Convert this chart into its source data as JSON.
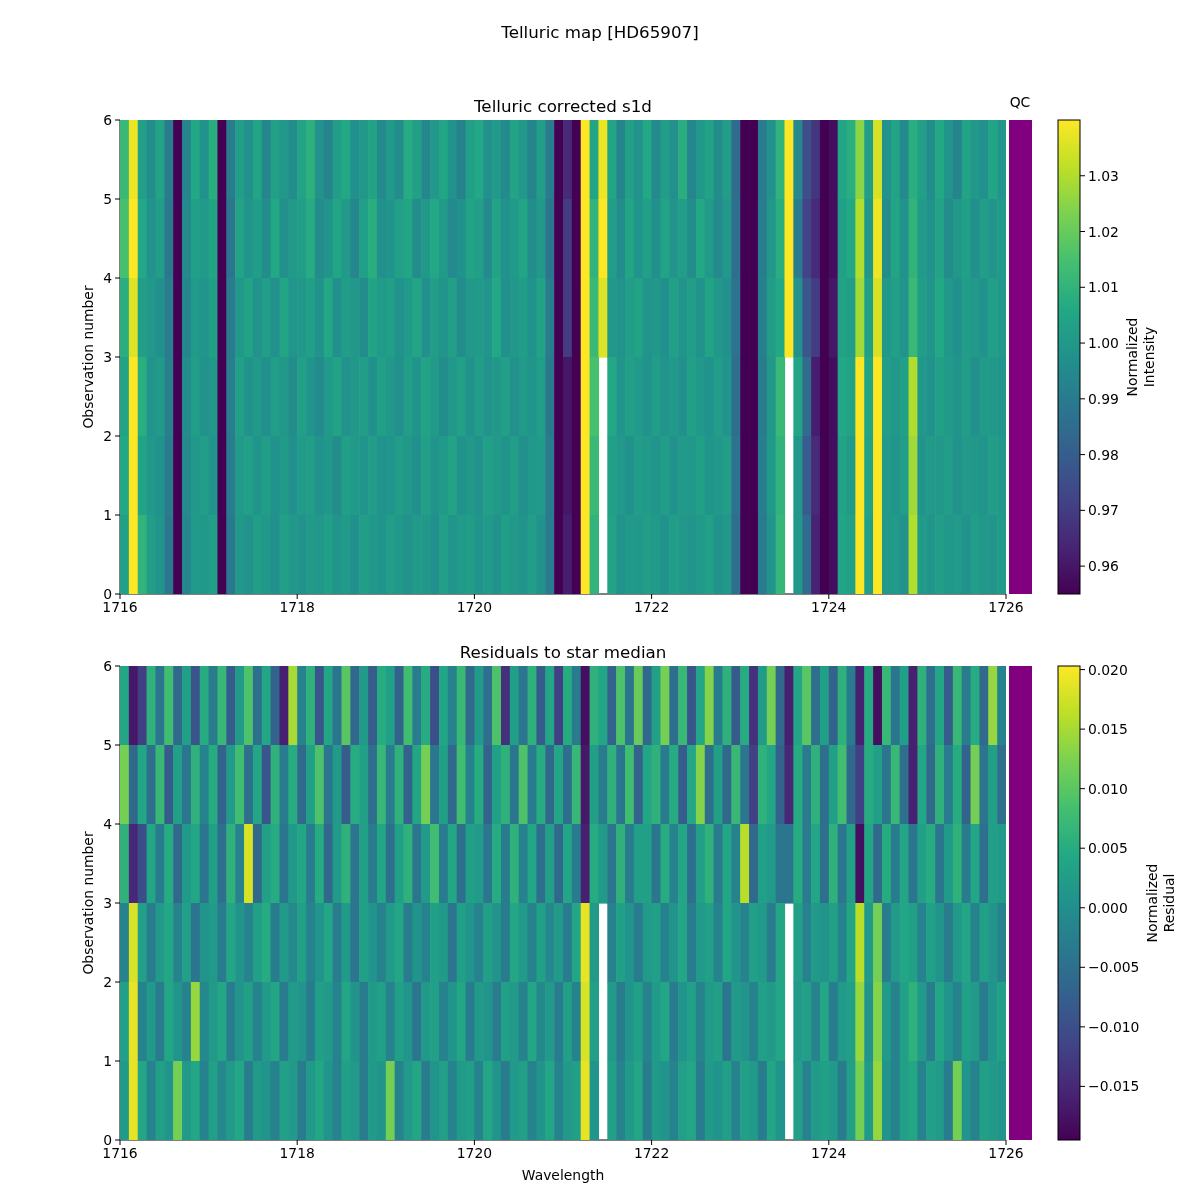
{
  "chart_data": [
    {
      "type": "heatmap",
      "title": "Telluric corrected s1d",
      "ylabel": "Observation number",
      "clabel": "Normalized Intensity",
      "annotations": [
        "Telluric map [HD65907]",
        "QC"
      ],
      "x": [
        1716.05,
        1716.15,
        1716.25,
        1716.35,
        1716.45,
        1716.55,
        1716.65,
        1716.75,
        1716.85,
        1716.95,
        1717.05,
        1717.15,
        1717.25,
        1717.35,
        1717.45,
        1717.55,
        1717.65,
        1717.75,
        1717.85,
        1717.95,
        1718.05,
        1718.15,
        1718.25,
        1718.35,
        1718.45,
        1718.55,
        1718.65,
        1718.75,
        1718.85,
        1718.95,
        1719.05,
        1719.15,
        1719.25,
        1719.35,
        1719.45,
        1719.55,
        1719.65,
        1719.75,
        1719.85,
        1719.95,
        1720.05,
        1720.15,
        1720.25,
        1720.35,
        1720.45,
        1720.55,
        1720.65,
        1720.75,
        1720.85,
        1720.95,
        1721.05,
        1721.15,
        1721.25,
        1721.35,
        1721.45,
        1721.55,
        1721.65,
        1721.75,
        1721.85,
        1721.95,
        1722.05,
        1722.15,
        1722.25,
        1722.35,
        1722.45,
        1722.55,
        1722.65,
        1722.75,
        1722.85,
        1722.95,
        1723.05,
        1723.15,
        1723.25,
        1723.35,
        1723.45,
        1723.55,
        1723.65,
        1723.75,
        1723.85,
        1723.95,
        1724.05,
        1724.15,
        1724.25,
        1724.35,
        1724.45,
        1724.55,
        1724.65,
        1724.75,
        1724.85,
        1724.95,
        1725.05,
        1725.15,
        1725.25,
        1725.35,
        1725.45,
        1725.55,
        1725.65,
        1725.75,
        1725.85,
        1725.95
      ],
      "xlim": [
        1716,
        1726
      ],
      "xticks": [
        1716,
        1718,
        1720,
        1722,
        1724,
        1726
      ],
      "ylim": [
        0,
        6
      ],
      "yticks": [
        0,
        1,
        2,
        3,
        4,
        5,
        6
      ],
      "clim": [
        0.955,
        1.04
      ],
      "cticks": [
        0.96,
        0.97,
        0.98,
        0.99,
        {
          "value": 1,
          "label": "1.00"
        },
        1.01,
        1.02,
        1.03
      ],
      "cells": [
        [
          1.012,
          1.038,
          1.003,
          0.996,
          1.004,
          0.99,
          0.955,
          0.993,
          1.006,
          0.998,
          1.008,
          0.955,
          0.99,
          1.002,
          0.997,
          1.005,
          0.994,
          1.003,
          1.0,
          0.996,
          1.004,
          1.009,
          0.998,
          0.993,
          1.002,
          1.006,
          0.997,
          1.0,
          1.004,
          0.995,
          1.001,
          0.996,
          1.007,
          1.003,
          0.994,
          1.0,
          1.005,
          0.998,
          0.992,
          1.003,
          1.006,
          0.997,
          1.001,
          0.995,
          1.004,
          1.0,
          0.993,
          1.002,
          0.99,
          0.955,
          0.965,
          0.955,
          1.04,
          1.005,
          1.038,
          1.005,
          0.993,
          1.003,
          0.998,
          1.006,
          0.995,
          1.002,
          0.997,
          1.008,
          0.994,
          1.0,
          1.004,
          0.996,
          1.002,
          0.985,
          0.955,
          0.955,
          0.99,
          0.998,
          1.01,
          1.04,
          0.995,
          0.975,
          0.968,
          0.955,
          0.958,
          1.005,
          1.008,
          1.025,
          1.002,
          1.035,
          0.998,
          1.004,
          0.995,
          1.008,
          1.003,
          0.996,
          1.006,
          0.999,
          0.993,
          1.004,
          1.0,
          0.997,
          1.005,
          0.999
        ],
        [
          1.015,
          1.04,
          1.006,
          0.998,
          1.002,
          0.989,
          0.955,
          0.995,
          1.003,
          1.001,
          1.005,
          0.955,
          0.988,
          1.004,
          0.999,
          1.002,
          0.996,
          1.006,
          0.997,
          1.001,
          1.002,
          1.007,
          0.996,
          0.999,
          1.005,
          1.001,
          0.994,
          1.003,
          1.008,
          0.997,
          0.999,
          1.003,
          1.005,
          0.996,
          1.0,
          1.006,
          1.001,
          0.995,
          0.998,
          1.004,
          1.003,
          0.995,
          1.004,
          0.998,
          1.001,
          1.005,
          0.996,
          1.0,
          0.988,
          0.955,
          0.97,
          0.955,
          1.04,
          1.01,
          1.04,
          1.002,
          0.996,
          1.005,
          0.999,
          1.003,
          0.997,
          1.004,
          0.999,
          1.002,
          0.996,
          1.006,
          1.001,
          0.995,
          1.0,
          0.986,
          0.955,
          0.955,
          0.991,
          1.0,
          1.008,
          1.04,
          0.99,
          0.972,
          0.965,
          0.955,
          0.958,
          1.003,
          1.006,
          1.03,
          1.0,
          1.038,
          0.996,
          1.005,
          0.998,
          1.01,
          1.001,
          0.998,
          1.004,
          0.996,
          1.0,
          1.003,
          0.997,
          1.002,
          0.999,
          1.001
        ],
        [
          1.008,
          1.036,
          1.002,
          1.0,
          0.997,
          0.991,
          0.955,
          0.994,
          1.001,
          0.999,
          1.003,
          0.955,
          0.99,
          1.0,
          1.004,
          0.998,
          1.002,
          0.997,
          1.005,
          0.999,
          1.0,
          1.003,
          0.998,
          1.006,
          0.997,
          1.002,
          1.0,
          0.996,
          1.004,
          1.001,
          1.003,
          0.998,
          1.001,
          1.005,
          0.997,
          1.002,
          0.999,
          1.003,
          0.996,
          1.0,
          1.001,
          0.999,
          1.006,
          0.997,
          1.0,
          1.002,
          0.998,
          1.004,
          0.99,
          0.955,
          0.97,
          0.955,
          1.04,
          1.012,
          1.036,
          1.0,
          0.998,
          1.002,
          1.004,
          0.999,
          1.0,
          0.997,
          1.003,
          0.999,
          1.002,
          0.998,
          1.004,
          1.0,
          0.997,
          0.987,
          0.955,
          0.955,
          0.992,
          1.002,
          1.006,
          1.04,
          0.998,
          0.978,
          0.97,
          0.955,
          0.96,
          1.004,
          1.002,
          1.028,
          1.003,
          1.035,
          1.0,
          1.003,
          0.999,
          1.012,
          1.002,
          0.999,
          1.006,
          1.0,
          0.997,
          1.002,
          1.001,
          0.998,
          1.003,
          1.0
        ],
        [
          1.004,
          1.04,
          1.008,
          0.999,
          1.001,
          0.992,
          0.955,
          0.996,
          1.002,
          0.998,
          1.0,
          0.955,
          0.991,
          1.003,
          0.998,
          1.001,
          0.997,
          1.002,
          1.0,
          0.996,
          1.003,
          0.999,
          0.995,
          1.001,
          1.004,
          0.998,
          1.0,
          1.002,
          0.997,
          1.003,
          1.0,
          0.997,
          1.002,
          0.999,
          1.004,
          1.001,
          0.996,
          1.0,
          1.003,
          0.998,
          1.002,
          0.998,
          1.0,
          1.003,
          0.997,
          1.001,
          0.999,
          1.002,
          0.989,
          0.955,
          0.96,
          0.955,
          1.04,
          1.015,
          null,
          1.006,
          0.999,
          1.003,
          1.001,
          0.998,
          1.002,
          0.999,
          1.001,
          0.997,
          1.003,
          1.0,
          0.998,
          1.002,
          0.999,
          0.986,
          0.955,
          0.955,
          0.99,
          1.0,
          1.012,
          null,
          1.005,
          0.985,
          0.962,
          0.955,
          0.958,
          1.006,
          1.004,
          1.04,
          1.005,
          1.04,
          1.002,
          1.0,
          1.003,
          1.03,
          1.0,
          0.998,
          1.003,
          1.001,
          0.999,
          1.002,
          0.997,
          1.001,
          1.0,
          0.999
        ],
        [
          1.006,
          1.04,
          1.004,
          1.0,
          0.998,
          0.99,
          0.955,
          0.995,
          1.0,
          1.002,
          0.999,
          0.955,
          0.99,
          1.001,
          1.003,
          0.999,
          1.002,
          0.998,
          1.001,
          0.997,
          1.001,
          1.002,
          0.998,
          1.0,
          0.996,
          1.003,
          1.001,
          0.999,
          1.002,
          0.998,
          0.999,
          1.002,
          1.0,
          0.997,
          1.003,
          0.999,
          1.001,
          1.004,
          0.998,
          1.0,
          0.998,
          1.003,
          1.001,
          0.999,
          1.002,
          0.997,
          1.0,
          1.001,
          0.99,
          0.955,
          0.96,
          0.955,
          1.04,
          1.012,
          null,
          1.003,
          1.0,
          0.998,
          1.002,
          1.001,
          0.999,
          1.002,
          0.998,
          1.001,
          1.0,
          1.003,
          0.999,
          1.0,
          1.002,
          0.987,
          0.955,
          0.955,
          0.991,
          1.001,
          1.01,
          null,
          1.0,
          0.98,
          0.965,
          0.955,
          0.958,
          1.004,
          1.001,
          1.04,
          1.004,
          1.04,
          1.001,
          0.999,
          1.002,
          1.028,
          0.999,
          1.001,
          1.0,
          1.002,
          0.998,
          1.001,
          1.0,
          0.999,
          1.002,
          1.0
        ],
        [
          1.003,
          1.04,
          1.01,
          1.002,
          0.999,
          0.989,
          0.955,
          0.994,
          1.001,
          1.0,
          1.002,
          0.955,
          0.989,
          1.0,
          0.998,
          1.002,
          1.0,
          0.997,
          1.003,
          1.0,
          0.998,
          1.001,
          1.0,
          1.003,
          0.999,
          1.001,
          0.997,
          1.002,
          1.0,
          0.999,
          1.002,
          1.0,
          0.998,
          1.001,
          1.0,
          0.997,
          1.003,
          0.999,
          1.001,
          1.002,
          0.999,
          1.001,
          0.998,
          1.002,
          1.0,
          0.999,
          1.002,
          0.998,
          0.99,
          0.955,
          0.962,
          0.955,
          1.04,
          1.01,
          null,
          1.004,
          0.998,
          1.001,
          1.0,
          1.002,
          1.001,
          0.998,
          1.002,
          1.0,
          0.999,
          1.001,
          1.003,
          0.998,
          1.0,
          0.986,
          0.955,
          0.955,
          0.99,
          0.999,
          1.011,
          null,
          1.0,
          0.985,
          0.963,
          0.955,
          0.958,
          1.005,
          1.003,
          1.04,
          1.003,
          1.04,
          1.0,
          1.001,
          0.998,
          1.03,
          1.001,
          0.999,
          1.002,
          1.0,
          1.001,
          0.998,
          1.002,
          1.0,
          0.999,
          1.001
        ]
      ]
    },
    {
      "type": "heatmap",
      "title": "Residuals to star median",
      "xlabel": "Wavelength",
      "ylabel": "Observation number",
      "clabel": "Normalized Residual",
      "x": [
        1716.05,
        1716.15,
        1716.25,
        1716.35,
        1716.45,
        1716.55,
        1716.65,
        1716.75,
        1716.85,
        1716.95,
        1717.05,
        1717.15,
        1717.25,
        1717.35,
        1717.45,
        1717.55,
        1717.65,
        1717.75,
        1717.85,
        1717.95,
        1718.05,
        1718.15,
        1718.25,
        1718.35,
        1718.45,
        1718.55,
        1718.65,
        1718.75,
        1718.85,
        1718.95,
        1719.05,
        1719.15,
        1719.25,
        1719.35,
        1719.45,
        1719.55,
        1719.65,
        1719.75,
        1719.85,
        1719.95,
        1720.05,
        1720.15,
        1720.25,
        1720.35,
        1720.45,
        1720.55,
        1720.65,
        1720.75,
        1720.85,
        1720.95,
        1721.05,
        1721.15,
        1721.25,
        1721.35,
        1721.45,
        1721.55,
        1721.65,
        1721.75,
        1721.85,
        1721.95,
        1722.05,
        1722.15,
        1722.25,
        1722.35,
        1722.45,
        1722.55,
        1722.65,
        1722.75,
        1722.85,
        1722.95,
        1723.05,
        1723.15,
        1723.25,
        1723.35,
        1723.45,
        1723.55,
        1723.65,
        1723.75,
        1723.85,
        1723.95,
        1724.05,
        1724.15,
        1724.25,
        1724.35,
        1724.45,
        1724.55,
        1724.65,
        1724.75,
        1724.85,
        1724.95,
        1725.05,
        1725.15,
        1725.25,
        1725.35,
        1725.45,
        1725.55,
        1725.65,
        1725.75,
        1725.85,
        1725.95
      ],
      "xlim": [
        1716,
        1726
      ],
      "xticks": [
        1716,
        1718,
        1720,
        1722,
        1724,
        1726
      ],
      "ylim": [
        0,
        6
      ],
      "yticks": [
        0,
        1,
        2,
        3,
        4,
        5,
        6
      ],
      "clim": [
        -0.0195,
        0.0203
      ],
      "cticks": [
        {
          "value": -0.015,
          "label": "−0.015"
        },
        {
          "value": -0.01,
          "label": "−0.010"
        },
        {
          "value": -0.005,
          "label": "−0.005"
        },
        {
          "value": 0,
          "label": "0.000"
        },
        0.005,
        {
          "value": 0.01,
          "label": "0.010"
        },
        0.015,
        {
          "value": 0.02,
          "label": "0.020"
        }
      ],
      "cells": [
        [
          0.004,
          -0.017,
          -0.012,
          0.006,
          -0.004,
          0.008,
          -0.006,
          0.003,
          -0.009,
          0.005,
          -0.003,
          0.007,
          -0.008,
          0.002,
          0.009,
          -0.005,
          0.004,
          -0.007,
          -0.016,
          0.015,
          -0.002,
          0.006,
          -0.009,
          0.004,
          -0.004,
          0.01,
          -0.006,
          0.002,
          -0.008,
          0.005,
          0.003,
          -0.007,
          0.008,
          -0.003,
          0.005,
          -0.01,
          0.004,
          -0.002,
          0.007,
          -0.006,
          0.002,
          -0.005,
          0.009,
          -0.014,
          0.003,
          -0.004,
          0.006,
          -0.008,
          0.004,
          -0.012,
          0.005,
          -0.003,
          -0.018,
          0.006,
          0.004,
          -0.007,
          0.009,
          -0.004,
          0.011,
          -0.006,
          0.003,
          0.012,
          -0.005,
          0.007,
          -0.009,
          0.004,
          0.013,
          -0.003,
          0.006,
          -0.008,
          0.005,
          -0.014,
          0.002,
          0.012,
          -0.006,
          -0.016,
          0.004,
          0.01,
          -0.005,
          0.003,
          -0.007,
          0.006,
          -0.003,
          -0.016,
          0.005,
          -0.018,
          0.007,
          -0.004,
          0.003,
          -0.016,
          0.006,
          -0.005,
          0.004,
          -0.008,
          0.007,
          -0.003,
          0.005,
          -0.006,
          0.014,
          -0.002
        ],
        [
          0.012,
          -0.006,
          0.004,
          -0.005,
          0.007,
          -0.008,
          0.003,
          -0.004,
          0.006,
          -0.002,
          0.005,
          -0.007,
          0.002,
          0.008,
          -0.005,
          0.004,
          -0.009,
          0.006,
          -0.003,
          0.005,
          -0.006,
          0.003,
          0.009,
          -0.004,
          0.002,
          -0.008,
          0.005,
          0.003,
          -0.005,
          0.007,
          -0.003,
          0.006,
          -0.007,
          0.004,
          0.012,
          -0.004,
          0.003,
          -0.006,
          0.008,
          -0.002,
          0.005,
          -0.007,
          0.003,
          0.006,
          -0.004,
          0.009,
          -0.003,
          0.005,
          -0.006,
          0.004,
          -0.005,
          0.007,
          -0.017,
          0.003,
          -0.003,
          0.006,
          -0.004,
          0.008,
          -0.007,
          0.004,
          0.006,
          -0.003,
          0.005,
          -0.008,
          0.004,
          0.013,
          -0.005,
          0.003,
          -0.006,
          0.007,
          -0.004,
          -0.012,
          0.006,
          0.004,
          -0.007,
          -0.015,
          0.005,
          -0.003,
          0.006,
          -0.005,
          0.003,
          0.008,
          -0.006,
          -0.012,
          0.005,
          0.003,
          -0.004,
          0.007,
          -0.005,
          -0.016,
          0.004,
          -0.006,
          0.006,
          -0.003,
          0.005,
          -0.007,
          0.012,
          -0.004,
          0.003,
          -0.005
        ],
        [
          0.006,
          -0.015,
          -0.01,
          0.004,
          -0.003,
          0.005,
          -0.006,
          0.002,
          0.004,
          -0.004,
          0.003,
          -0.005,
          0.006,
          -0.002,
          0.018,
          -0.006,
          0.003,
          0.005,
          -0.004,
          0.002,
          0.004,
          -0.003,
          0.005,
          -0.006,
          0.002,
          0.006,
          -0.004,
          0.003,
          -0.003,
          0.004,
          -0.005,
          0.003,
          0.006,
          -0.004,
          0.002,
          0.008,
          -0.003,
          0.004,
          -0.005,
          0.003,
          0.002,
          -0.004,
          0.005,
          -0.003,
          0.006,
          -0.002,
          0.004,
          -0.005,
          0.003,
          -0.006,
          0.004,
          -0.003,
          -0.016,
          0.005,
          0.002,
          -0.004,
          0.006,
          -0.003,
          0.003,
          0.003,
          -0.004,
          0.005,
          -0.002,
          0.004,
          -0.005,
          0.003,
          0.006,
          -0.003,
          0.004,
          -0.002,
          0.016,
          -0.006,
          0.003,
          0.002,
          -0.004,
          -0.004,
          0.005,
          -0.003,
          0.004,
          -0.005,
          0.006,
          -0.004,
          0.003,
          -0.018,
          0.004,
          -0.006,
          0.005,
          -0.003,
          0.004,
          -0.004,
          0.003,
          0.005,
          -0.004,
          0.002,
          0.006,
          -0.003,
          0.004,
          -0.005,
          0.003,
          0.002
        ],
        [
          -0.002,
          0.018,
          0.003,
          -0.003,
          0.002,
          0.004,
          -0.002,
          0.003,
          -0.004,
          0.001,
          0.002,
          -0.003,
          0.004,
          0.001,
          -0.002,
          0.003,
          0.005,
          -0.003,
          0.002,
          -0.001,
          0.003,
          -0.002,
          0.001,
          0.004,
          -0.003,
          0.002,
          -0.004,
          0.003,
          0.001,
          -0.002,
          0.002,
          0.004,
          -0.003,
          0.001,
          -0.002,
          0.003,
          0.002,
          -0.004,
          0.003,
          0.001,
          -0.002,
          0.003,
          0.001,
          -0.003,
          0.004,
          0.002,
          -0.002,
          0.003,
          -0.001,
          0.002,
          -0.003,
          0.004,
          0.019,
          0.002,
          null,
          -0.002,
          0.003,
          0.001,
          -0.003,
          0.002,
          0.003,
          -0.002,
          0.001,
          0.004,
          -0.003,
          0.002,
          0.003,
          -0.002,
          0.004,
          0.001,
          -0.002,
          0.003,
          0.002,
          -0.003,
          0.004,
          null,
          0.003,
          -0.002,
          0.002,
          0.001,
          0.003,
          -0.002,
          0.004,
          0.016,
          0.002,
          0.012,
          -0.003,
          0.002,
          0.004,
          0.003,
          -0.002,
          0.003,
          0.001,
          -0.003,
          0.002,
          0.004,
          -0.002,
          0.003,
          0.001,
          -0.002
        ],
        [
          0.003,
          0.019,
          -0.002,
          0.002,
          -0.003,
          0.004,
          0.001,
          -0.002,
          0.014,
          -0.001,
          0.002,
          0.004,
          -0.003,
          0.001,
          0.003,
          -0.002,
          0.002,
          0.004,
          -0.003,
          0.002,
          0.001,
          -0.003,
          0.003,
          0.002,
          -0.002,
          0.004,
          0.001,
          -0.003,
          0.002,
          0.003,
          -0.002,
          0.003,
          0.001,
          -0.004,
          0.002,
          0.003,
          -0.002,
          0.001,
          0.004,
          -0.003,
          0.002,
          0.001,
          -0.003,
          0.003,
          0.002,
          -0.002,
          0.004,
          -0.001,
          0.002,
          -0.003,
          0.003,
          -0.002,
          0.018,
          0.003,
          null,
          0.002,
          -0.003,
          0.001,
          0.003,
          -0.002,
          0.002,
          0.004,
          -0.003,
          0.001,
          0.003,
          -0.002,
          0.002,
          0.003,
          -0.004,
          0.002,
          0.001,
          -0.002,
          0.003,
          0.002,
          0.004,
          null,
          0.002,
          0.003,
          -0.002,
          0.004,
          -0.003,
          0.002,
          0.003,
          0.014,
          0.001,
          0.013,
          0.002,
          -0.002,
          0.003,
          0.006,
          0.002,
          -0.003,
          0.004,
          0.001,
          -0.002,
          0.003,
          0.002,
          -0.003,
          0.001,
          0.003
        ],
        [
          0.002,
          0.019,
          0.004,
          -0.002,
          0.003,
          0.001,
          0.012,
          0.002,
          0.004,
          -0.002,
          0.003,
          -0.001,
          0.002,
          0.004,
          -0.003,
          0.002,
          0.001,
          -0.002,
          0.003,
          0.002,
          -0.003,
          0.002,
          0.004,
          0.001,
          -0.002,
          0.003,
          0.002,
          -0.003,
          0.002,
          0.001,
          0.012,
          -0.002,
          0.002,
          0.004,
          -0.003,
          0.001,
          0.003,
          -0.002,
          0.002,
          0.003,
          -0.002,
          0.004,
          0.001,
          -0.003,
          0.002,
          0.003,
          -0.002,
          0.001,
          0.004,
          -0.002,
          0.002,
          0.003,
          0.019,
          0.001,
          null,
          0.003,
          -0.002,
          0.002,
          0.004,
          -0.003,
          0.002,
          0.001,
          -0.002,
          0.003,
          0.004,
          -0.003,
          0.002,
          0.001,
          0.003,
          -0.002,
          0.003,
          0.002,
          -0.003,
          0.004,
          0.001,
          null,
          0.003,
          -0.002,
          0.002,
          0.003,
          0.002,
          -0.003,
          0.003,
          0.012,
          0.002,
          0.014,
          0.001,
          -0.002,
          0.003,
          0.004,
          -0.002,
          0.003,
          0.002,
          -0.003,
          0.012,
          0.001,
          -0.002,
          0.003,
          0.002,
          0.001
        ]
      ]
    }
  ]
}
